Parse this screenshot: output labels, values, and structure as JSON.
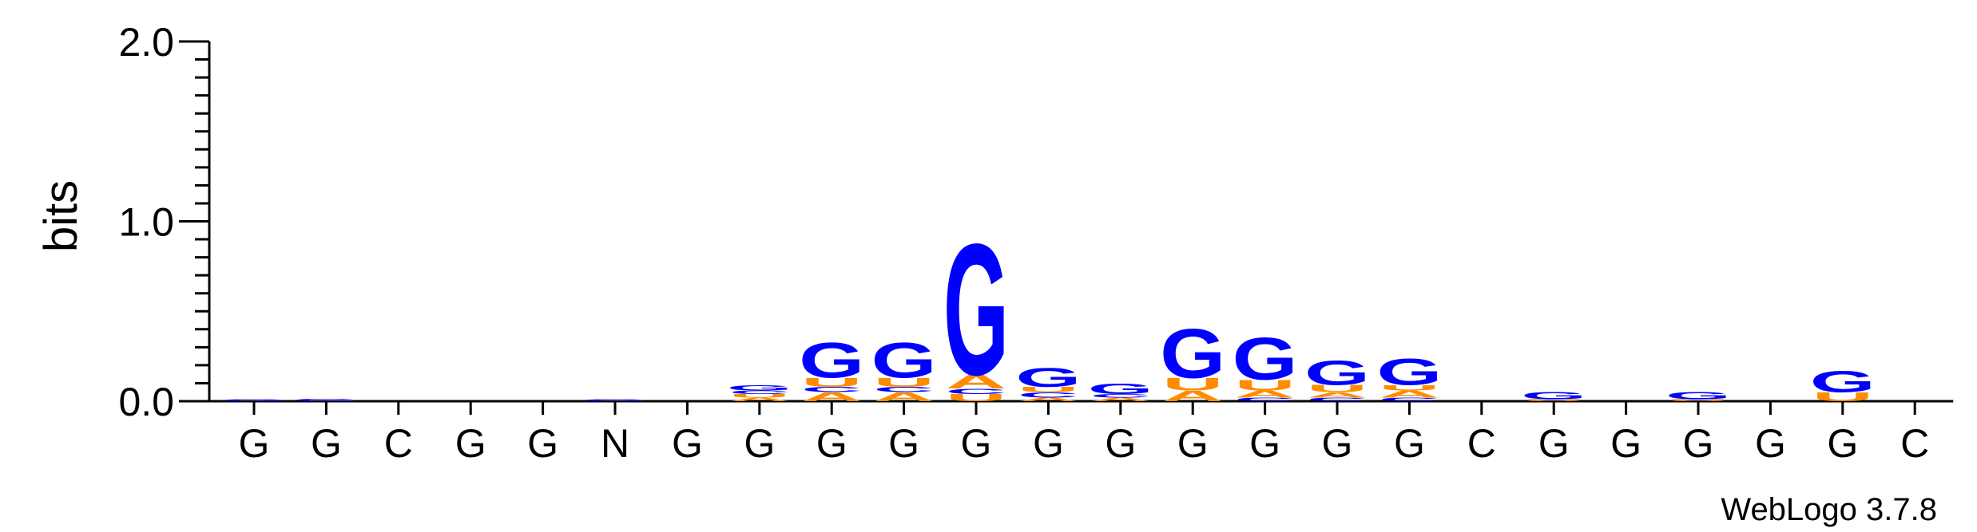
{
  "colors": {
    "G": "#0000ff",
    "U": "#ff8c00",
    "A": "#ff8c00",
    "C": "#0000ff",
    "axis": "#000000"
  },
  "credit": "WebLogo 3.7.8",
  "chart_data": {
    "type": "sequence-logo",
    "ylabel": "bits",
    "ylim": [
      0,
      2.0
    ],
    "yticks": [
      "0.0",
      "1.0",
      "2.0"
    ],
    "xticks": [
      "G",
      "G",
      "C",
      "G",
      "G",
      "N",
      "G",
      "G",
      "G",
      "G",
      "G",
      "G",
      "G",
      "G",
      "G",
      "G",
      "G",
      "C",
      "G",
      "G",
      "G",
      "G",
      "G",
      "C"
    ],
    "positions": [
      [
        {
          "l": "G",
          "v": 0.01
        }
      ],
      [
        {
          "l": "G",
          "v": 0.015
        }
      ],
      [],
      [],
      [],
      [
        {
          "l": "G",
          "v": 0.01
        }
      ],
      [],
      [
        {
          "l": "A",
          "v": 0.02
        },
        {
          "l": "U",
          "v": 0.02
        },
        {
          "l": "C",
          "v": 0.02
        },
        {
          "l": "G",
          "v": 0.03
        }
      ],
      [
        {
          "l": "A",
          "v": 0.05
        },
        {
          "l": "C",
          "v": 0.03
        },
        {
          "l": "U",
          "v": 0.05
        },
        {
          "l": "G",
          "v": 0.2
        }
      ],
      [
        {
          "l": "A",
          "v": 0.05
        },
        {
          "l": "C",
          "v": 0.03
        },
        {
          "l": "U",
          "v": 0.05
        },
        {
          "l": "G",
          "v": 0.2
        }
      ],
      [
        {
          "l": "U",
          "v": 0.04
        },
        {
          "l": "C",
          "v": 0.03
        },
        {
          "l": "A",
          "v": 0.08
        },
        {
          "l": "G",
          "v": 0.75
        }
      ],
      [
        {
          "l": "A",
          "v": 0.02
        },
        {
          "l": "C",
          "v": 0.03
        },
        {
          "l": "U",
          "v": 0.03
        },
        {
          "l": "G",
          "v": 0.11
        }
      ],
      [
        {
          "l": "A",
          "v": 0.02
        },
        {
          "l": "C",
          "v": 0.02
        },
        {
          "l": "G",
          "v": 0.06
        }
      ],
      [
        {
          "l": "A",
          "v": 0.06
        },
        {
          "l": "U",
          "v": 0.07
        },
        {
          "l": "G",
          "v": 0.28
        }
      ],
      [
        {
          "l": "C",
          "v": 0.02
        },
        {
          "l": "A",
          "v": 0.04
        },
        {
          "l": "U",
          "v": 0.06
        },
        {
          "l": "G",
          "v": 0.24
        }
      ],
      [
        {
          "l": "C",
          "v": 0.02
        },
        {
          "l": "A",
          "v": 0.03
        },
        {
          "l": "U",
          "v": 0.04
        },
        {
          "l": "G",
          "v": 0.14
        }
      ],
      [
        {
          "l": "C",
          "v": 0.02
        },
        {
          "l": "A",
          "v": 0.04
        },
        {
          "l": "U",
          "v": 0.03
        },
        {
          "l": "G",
          "v": 0.15
        }
      ],
      [],
      [
        {
          "l": "U",
          "v": 0.01
        },
        {
          "l": "G",
          "v": 0.04
        }
      ],
      [],
      [
        {
          "l": "U",
          "v": 0.01
        },
        {
          "l": "G",
          "v": 0.04
        }
      ],
      [],
      [
        {
          "l": "U",
          "v": 0.05
        },
        {
          "l": "G",
          "v": 0.12
        }
      ],
      []
    ]
  }
}
